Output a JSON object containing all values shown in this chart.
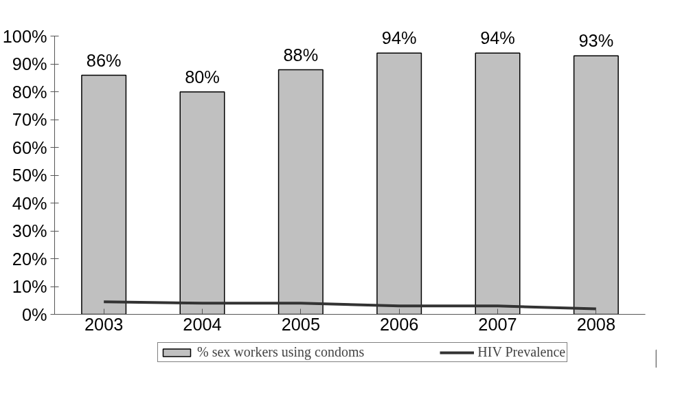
{
  "chart_data": {
    "type": "bar",
    "categories": [
      "2003",
      "2004",
      "2005",
      "2006",
      "2007",
      "2008"
    ],
    "series": [
      {
        "name": "% sex workers using condoms",
        "type": "bar",
        "color": "#c0c0c0",
        "values": [
          86,
          80,
          88,
          94,
          94,
          93
        ],
        "value_labels": [
          "86%",
          "80%",
          "88%",
          "94%",
          "94%",
          "93%"
        ]
      },
      {
        "name": "HIV Prevalence",
        "type": "line",
        "color": "#333333",
        "values": [
          4.5,
          4,
          4,
          3,
          3,
          2
        ]
      }
    ],
    "ylim": [
      0,
      100
    ],
    "yticks": [
      {
        "value": 0,
        "label": "0%"
      },
      {
        "value": 10,
        "label": "10%"
      },
      {
        "value": 20,
        "label": "20%"
      },
      {
        "value": 30,
        "label": "30%"
      },
      {
        "value": 40,
        "label": "40%"
      },
      {
        "value": 50,
        "label": "50%"
      },
      {
        "value": 60,
        "label": "60%"
      },
      {
        "value": 70,
        "label": "70%"
      },
      {
        "value": 80,
        "label": "80%"
      },
      {
        "value": 90,
        "label": "90%"
      },
      {
        "value": 100,
        "label": "100%"
      }
    ],
    "grid": false,
    "legend": "bottom",
    "line_style": "solid",
    "marker": "none"
  }
}
